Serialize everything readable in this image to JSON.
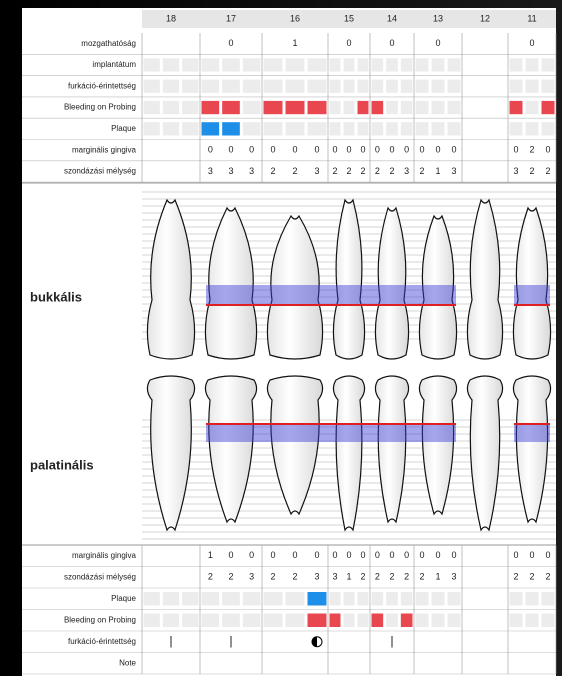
{
  "header": {
    "teeth": [
      "18",
      "17",
      "16",
      "15",
      "14",
      "13",
      "12",
      "11"
    ]
  },
  "upper": {
    "mobility": {
      "label": "mozgathatóság",
      "values": [
        null,
        0,
        1,
        0,
        0,
        0,
        null,
        0
      ]
    },
    "implant": {
      "label": "implantátum"
    },
    "furcation": {
      "label": "furkáció-érintettség"
    },
    "bleeding": {
      "label": "Bleeding on Probing",
      "color": "#e8474f",
      "sites": [
        [
          0,
          0,
          0
        ],
        [
          1,
          1,
          0
        ],
        [
          1,
          1,
          1
        ],
        [
          0,
          0,
          1
        ],
        [
          1,
          0,
          0
        ],
        [
          0,
          0,
          0
        ],
        null,
        [
          1,
          0,
          1
        ]
      ]
    },
    "plaque": {
      "label": "Plaque",
      "color": "#1e8fe8",
      "sites": [
        [
          0,
          0,
          0
        ],
        [
          1,
          1,
          0
        ],
        [
          0,
          0,
          0
        ],
        [
          0,
          0,
          0
        ],
        [
          0,
          0,
          0
        ],
        [
          0,
          0,
          0
        ],
        null,
        [
          0,
          0,
          0
        ]
      ]
    },
    "gingiva": {
      "label": "marginális gingiva",
      "sites": [
        null,
        [
          0,
          0,
          0
        ],
        [
          0,
          0,
          0
        ],
        [
          0,
          0,
          0
        ],
        [
          0,
          0,
          0
        ],
        [
          0,
          0,
          0
        ],
        null,
        [
          0,
          2,
          0
        ]
      ]
    },
    "depth": {
      "label": "szondázási mélység",
      "sites": [
        null,
        [
          3,
          3,
          3
        ],
        [
          2,
          2,
          3
        ],
        [
          2,
          2,
          2
        ],
        [
          2,
          2,
          3
        ],
        [
          2,
          1,
          3
        ],
        null,
        [
          3,
          2,
          2
        ]
      ]
    }
  },
  "regions": {
    "buccal": "bukkális",
    "palatal": "palatinális"
  },
  "lower": {
    "gingiva": {
      "label": "marginális gingiva",
      "sites": [
        null,
        [
          1,
          0,
          0
        ],
        [
          0,
          0,
          0
        ],
        [
          0,
          0,
          0
        ],
        [
          0,
          0,
          0
        ],
        [
          0,
          0,
          0
        ],
        null,
        [
          0,
          0,
          0
        ]
      ]
    },
    "depth": {
      "label": "szondázási mélység",
      "sites": [
        null,
        [
          2,
          2,
          3
        ],
        [
          2,
          2,
          3
        ],
        [
          3,
          1,
          2
        ],
        [
          2,
          2,
          2
        ],
        [
          2,
          1,
          3
        ],
        null,
        [
          2,
          2,
          2
        ]
      ]
    },
    "plaque": {
      "label": "Plaque",
      "color": "#1e8fe8",
      "sites": [
        [
          0,
          0,
          0
        ],
        [
          0,
          0,
          0
        ],
        [
          0,
          0,
          1
        ],
        [
          0,
          0,
          0
        ],
        [
          0,
          0,
          0
        ],
        [
          0,
          0,
          0
        ],
        null,
        [
          0,
          0,
          0
        ]
      ]
    },
    "bleeding": {
      "label": "Bleeding on Probing",
      "color": "#e8474f",
      "sites": [
        [
          0,
          0,
          0
        ],
        [
          0,
          0,
          0
        ],
        [
          0,
          0,
          1
        ],
        [
          1,
          0,
          0
        ],
        [
          1,
          0,
          1
        ],
        [
          0,
          0,
          0
        ],
        null,
        [
          0,
          0,
          0
        ]
      ]
    },
    "furcation": {
      "label": "furkáció-érintettség",
      "sites": [
        [
          0,
          1,
          0
        ],
        [
          0,
          1,
          0
        ],
        [
          0,
          0,
          2
        ],
        [
          0,
          0,
          0
        ],
        [
          0,
          1,
          0
        ],
        [
          0,
          0,
          0
        ],
        null,
        [
          0,
          0,
          0
        ]
      ]
    },
    "note": {
      "label": "Note"
    }
  }
}
